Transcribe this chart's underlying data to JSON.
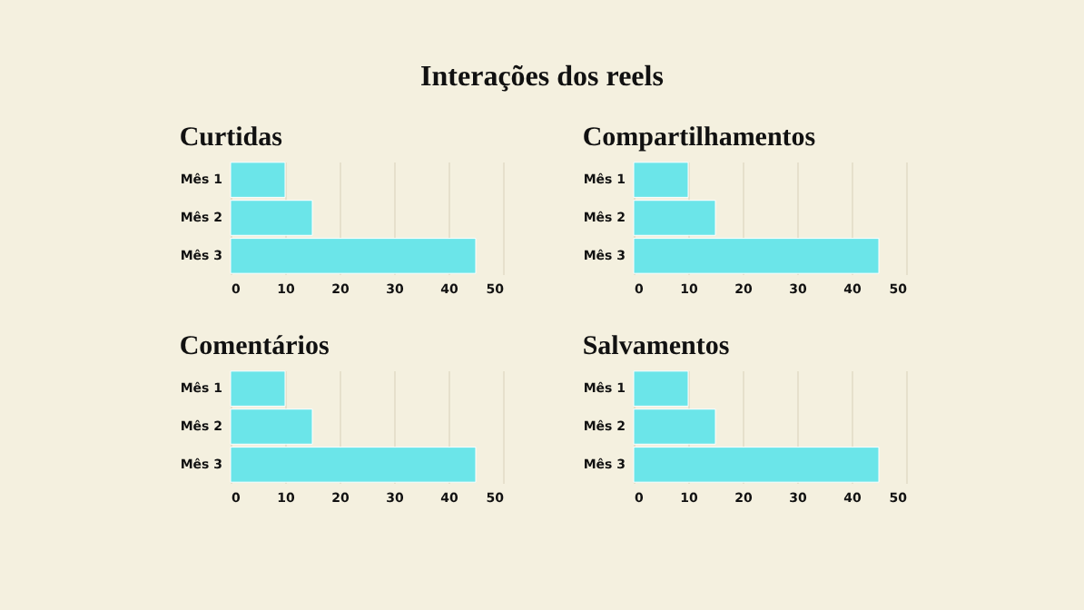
{
  "chart_data": [
    {
      "type": "other",
      "title": "Interações dos reels"
    },
    {
      "type": "bar",
      "orientation": "horizontal",
      "title": "Curtidas",
      "categories": [
        "Mês 1",
        "Mês 2",
        "Mês 3"
      ],
      "values": [
        10,
        15,
        45
      ],
      "color": "#6be5e9",
      "xlim": [
        0,
        50
      ],
      "xticks": [
        0,
        10,
        20,
        30,
        40,
        50
      ],
      "grid": "x"
    },
    {
      "type": "bar",
      "orientation": "horizontal",
      "title": "Compartilhamentos",
      "categories": [
        "Mês 1",
        "Mês 2",
        "Mês 3"
      ],
      "values": [
        10,
        15,
        45
      ],
      "color": "#6be5e9",
      "xlim": [
        0,
        50
      ],
      "xticks": [
        0,
        10,
        20,
        30,
        40,
        50
      ],
      "grid": "x"
    },
    {
      "type": "bar",
      "orientation": "horizontal",
      "title": "Comentários",
      "categories": [
        "Mês 1",
        "Mês 2",
        "Mês 3"
      ],
      "values": [
        10,
        15,
        45
      ],
      "color": "#6be5e9",
      "xlim": [
        0,
        50
      ],
      "xticks": [
        0,
        10,
        20,
        30,
        40,
        50
      ],
      "grid": "x"
    },
    {
      "type": "bar",
      "orientation": "horizontal",
      "title": "Salvamentos",
      "categories": [
        "Mês 1",
        "Mês 2",
        "Mês 3"
      ],
      "values": [
        10,
        15,
        45
      ],
      "color": "#6be5e9",
      "xlim": [
        0,
        50
      ],
      "xticks": [
        0,
        10,
        20,
        30,
        40,
        50
      ],
      "grid": "x"
    }
  ]
}
